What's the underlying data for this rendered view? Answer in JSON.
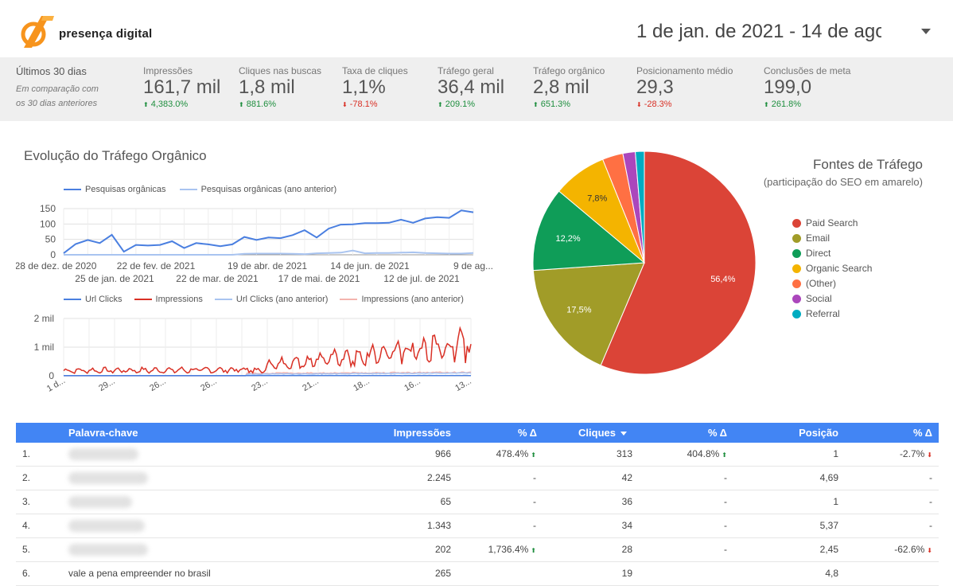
{
  "header": {
    "brand": "presença digital",
    "date_range": "1 de jan. de 2021 - 14 de ago",
    "colors": {
      "logo_orange": "#f7941d"
    }
  },
  "kpis": {
    "period_title": "Últimos 30 dias",
    "period_sub1": "Em comparação com",
    "period_sub2": "os 30 dias anteriores",
    "items": [
      {
        "label": "Impressões",
        "value": "161,7 mil",
        "change": "4,383.0%",
        "dir": "up"
      },
      {
        "label": "Cliques nas buscas",
        "value": "1,8 mil",
        "change": "881.6%",
        "dir": "up"
      },
      {
        "label": "Taxa de cliques",
        "value": "1,1%",
        "change": "-78.1%",
        "dir": "down"
      },
      {
        "label": "Tráfego geral",
        "value": "36,4 mil",
        "change": "209.1%",
        "dir": "up"
      },
      {
        "label": "Tráfego orgânico",
        "value": "2,8 mil",
        "change": "651.3%",
        "dir": "up"
      },
      {
        "label": "Posicionamento médio",
        "value": "29,3",
        "change": "-28.3%",
        "dir": "down"
      },
      {
        "label": "Conclusões de meta",
        "value": "199,0",
        "change": "261.8%",
        "dir": "up"
      }
    ]
  },
  "organic": {
    "title": "Evolução do Tráfego Orgânico"
  },
  "chart_data": [
    {
      "type": "line",
      "series": [
        {
          "name": "Pesquisas orgânicas",
          "color": "#4a7fe0",
          "values": [
            5,
            35,
            48,
            38,
            65,
            10,
            32,
            30,
            32,
            44,
            22,
            38,
            34,
            28,
            34,
            58,
            48,
            56,
            54,
            64,
            80,
            56,
            85,
            98,
            99,
            103,
            103,
            104,
            114,
            104,
            118,
            122,
            120,
            144,
            138
          ]
        },
        {
          "name": "Pesquisas orgânicas (ano anterior)",
          "color": "#a9c4f0",
          "values": [
            0,
            0,
            0,
            0,
            0,
            0,
            0,
            0,
            0,
            0,
            0,
            0,
            0,
            0,
            0,
            3,
            4,
            4,
            4,
            3,
            2,
            5,
            6,
            7,
            14,
            5,
            6,
            6,
            7,
            8,
            6,
            5,
            4,
            4,
            6
          ]
        }
      ],
      "x_labels_top": [
        "28 de dez. de 2020",
        "22 de fev. de 2021",
        "19 de abr. de 2021",
        "14 de jun. de 2021",
        "9 de ag..."
      ],
      "x_labels_bottom": [
        "25 de jan. de 2021",
        "22 de mar. de 2021",
        "17 de mai. de 2021",
        "12 de jul. de 2021"
      ],
      "y_ticks": [
        "150",
        "100",
        "50",
        "0"
      ],
      "ylim": [
        0,
        150
      ]
    },
    {
      "type": "line",
      "series": [
        {
          "name": "Url Clicks",
          "color": "#4a7fe0"
        },
        {
          "name": "Impressions",
          "color": "#d93025"
        },
        {
          "name": "Url Clicks (ano anterior)",
          "color": "#a9c4f0"
        },
        {
          "name": "Impressions (ano anterior)",
          "color": "#f4b4ae"
        }
      ],
      "y_ticks": [
        "2 mil",
        "1 mil",
        "0"
      ],
      "ylim": [
        0,
        2000
      ],
      "x_labels": [
        "1 d...",
        "29...",
        "26...",
        "26...",
        "23...",
        "21...",
        "18...",
        "16...",
        "13..."
      ]
    },
    {
      "type": "pie",
      "title": "Fontes de Tráfego",
      "subtitle": "(participação do SEO em amarelo)",
      "slices": [
        {
          "name": "Paid Search",
          "value": 56.4,
          "label": "56,4%",
          "color": "#db4437"
        },
        {
          "name": "Email",
          "value": 17.5,
          "label": "17,5%",
          "color": "#a19c28"
        },
        {
          "name": "Direct",
          "value": 12.2,
          "label": "12,2%",
          "color": "#0f9d58"
        },
        {
          "name": "Organic Search",
          "value": 7.8,
          "label": "7,8%",
          "color": "#f4b400"
        },
        {
          "name": "(Other)",
          "value": 3.0,
          "label": "",
          "color": "#ff7043"
        },
        {
          "name": "Social",
          "value": 1.8,
          "label": "",
          "color": "#ab47bc"
        },
        {
          "name": "Referral",
          "value": 1.3,
          "label": "",
          "color": "#00acc1"
        }
      ]
    }
  ],
  "table": {
    "headers": {
      "keyword": "Palavra-chave",
      "impressions": "Impressões",
      "delta1": "% Δ",
      "clicks": "Cliques",
      "delta2": "% Δ",
      "position": "Posição",
      "delta3": "% Δ"
    },
    "rows": [
      {
        "n": "1.",
        "kw": "",
        "imp": "966",
        "d1": "478.4%",
        "d1dir": "up",
        "clk": "313",
        "d2": "404.8%",
        "d2dir": "up",
        "pos": "1",
        "d3": "-2.7%",
        "d3dir": "down"
      },
      {
        "n": "2.",
        "kw": "",
        "imp": "2.245",
        "d1": "-",
        "d1dir": "",
        "clk": "42",
        "d2": "-",
        "d2dir": "",
        "pos": "4,69",
        "d3": "-",
        "d3dir": ""
      },
      {
        "n": "3.",
        "kw": "",
        "imp": "65",
        "d1": "-",
        "d1dir": "",
        "clk": "36",
        "d2": "-",
        "d2dir": "",
        "pos": "1",
        "d3": "-",
        "d3dir": ""
      },
      {
        "n": "4.",
        "kw": "",
        "imp": "1.343",
        "d1": "-",
        "d1dir": "",
        "clk": "34",
        "d2": "-",
        "d2dir": "",
        "pos": "5,37",
        "d3": "-",
        "d3dir": ""
      },
      {
        "n": "5.",
        "kw": "",
        "imp": "202",
        "d1": "1,736.4%",
        "d1dir": "up",
        "clk": "28",
        "d2": "-",
        "d2dir": "",
        "pos": "2,45",
        "d3": "-62.6%",
        "d3dir": "down"
      },
      {
        "n": "6.",
        "kw": "vale a pena empreender no brasil",
        "imp": "265",
        "d1": "",
        "d1dir": "",
        "clk": "19",
        "d2": "",
        "d2dir": "",
        "pos": "4,8",
        "d3": "",
        "d3dir": ""
      }
    ]
  }
}
